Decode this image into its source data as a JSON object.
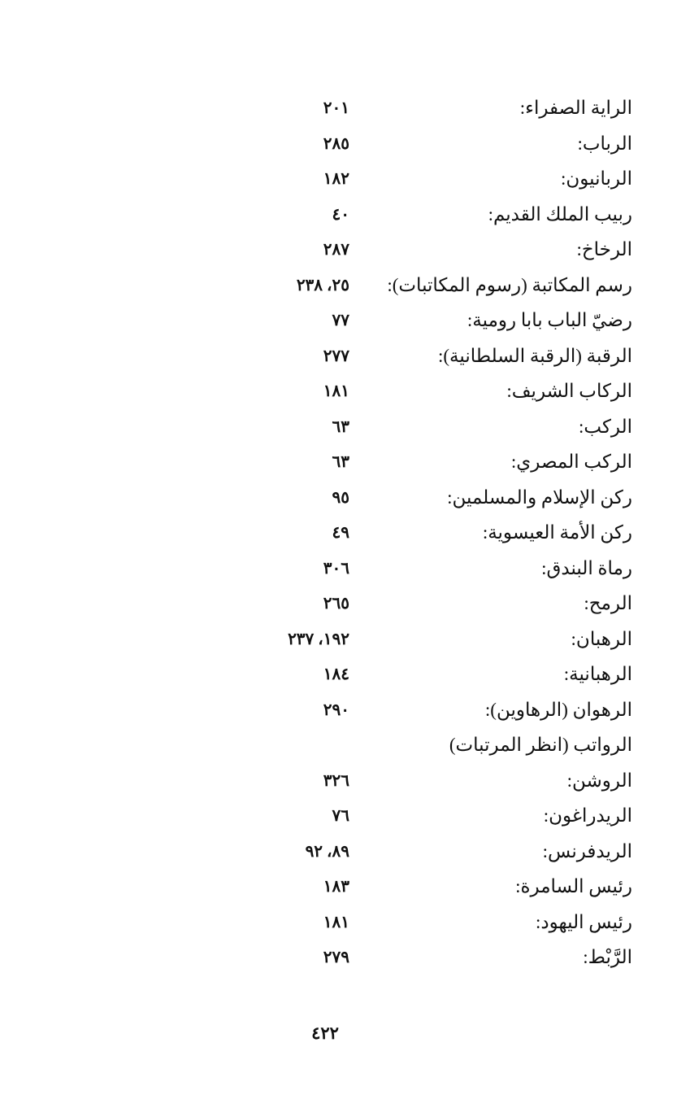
{
  "entries": [
    {
      "term": "الراية الصفراء:",
      "pages": "٢٠١"
    },
    {
      "term": "الرباب:",
      "pages": "٢٨٥"
    },
    {
      "term": "الربانيون:",
      "pages": "١٨٢"
    },
    {
      "term": "ربيب الملك القديم:",
      "pages": "٤٠"
    },
    {
      "term": "الرخاخ:",
      "pages": "٢٨٧"
    },
    {
      "term": "رسم المكاتبة (رسوم المكاتبات):",
      "pages": "٢٥، ٢٣٨"
    },
    {
      "term": "رضيّ الباب بابا رومية:",
      "pages": "٧٧"
    },
    {
      "term": "الرقبة (الرقبة السلطانية):",
      "pages": "٢٧٧"
    },
    {
      "term": "الركاب الشريف:",
      "pages": "١٨١"
    },
    {
      "term": "الركب:",
      "pages": "٦٣"
    },
    {
      "term": "الركب المصري:",
      "pages": "٦٣"
    },
    {
      "term": "ركن الإسلام والمسلمين:",
      "pages": "٩٥"
    },
    {
      "term": "ركن الأمة العيسوية:",
      "pages": "٤٩"
    },
    {
      "term": "رماة البندق:",
      "pages": "٣٠٦"
    },
    {
      "term": "الرمح:",
      "pages": "٢٦٥"
    },
    {
      "term": "الرهبان:",
      "pages": "١٩٢، ٢٣٧"
    },
    {
      "term": "الرهبانية:",
      "pages": "١٨٤"
    },
    {
      "term": "الرهوان (الرهاوين):",
      "pages": "٢٩٠"
    },
    {
      "term": "الرواتب (انظر المرتبات)",
      "pages": ""
    },
    {
      "term": "الروشن:",
      "pages": "٣٢٦"
    },
    {
      "term": "الريدراغون:",
      "pages": "٧٦"
    },
    {
      "term": "الريدفرنس:",
      "pages": "٨٩، ٩٢"
    },
    {
      "term": "رئيس السامرة:",
      "pages": "١٨٣"
    },
    {
      "term": "رئيس اليهود:",
      "pages": "١٨١"
    },
    {
      "term": "الرَّبْط:",
      "pages": "٢٧٩"
    }
  ],
  "page_number": "٤٢٢"
}
